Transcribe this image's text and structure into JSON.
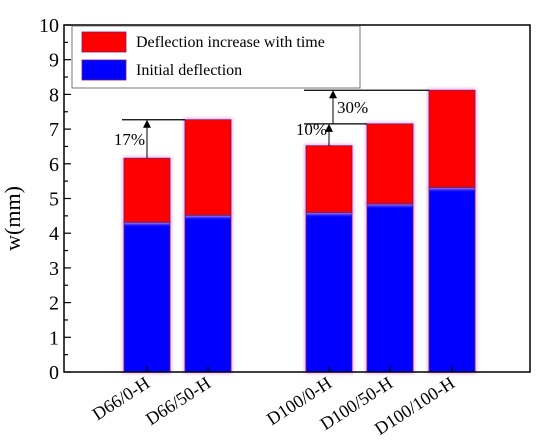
{
  "chart_data": {
    "type": "bar",
    "stacked": true,
    "categories": [
      "D66/0-H",
      "D66/50-H",
      "D100/0-H",
      "D100/50-H",
      "D100/100-H"
    ],
    "series": [
      {
        "name": "Initial deflection",
        "color": "#0000ff",
        "values": [
          4.32,
          4.52,
          4.6,
          4.85,
          5.32
        ]
      },
      {
        "name": "Deflection increase with time",
        "color": "#ff0000",
        "values": [
          1.84,
          2.75,
          1.92,
          2.3,
          2.8
        ]
      }
    ],
    "ylabel": "w(mm)",
    "xlabel": "",
    "ylim": [
      0,
      10
    ],
    "yticks": [
      "0",
      "1",
      "2",
      "3",
      "4",
      "5",
      "6",
      "7",
      "8",
      "9",
      "10"
    ],
    "grid": false,
    "legend_position": "top-left",
    "annotations": [
      {
        "text": "17%",
        "from_category": 0,
        "from_value": 6.16,
        "to_value": 7.27
      },
      {
        "text": "10%",
        "from_category": 2,
        "from_value": 6.52,
        "to_value": 7.15
      },
      {
        "text": "30%",
        "from_category": 2,
        "from_value": 7.15,
        "to_value": 8.12
      }
    ]
  }
}
